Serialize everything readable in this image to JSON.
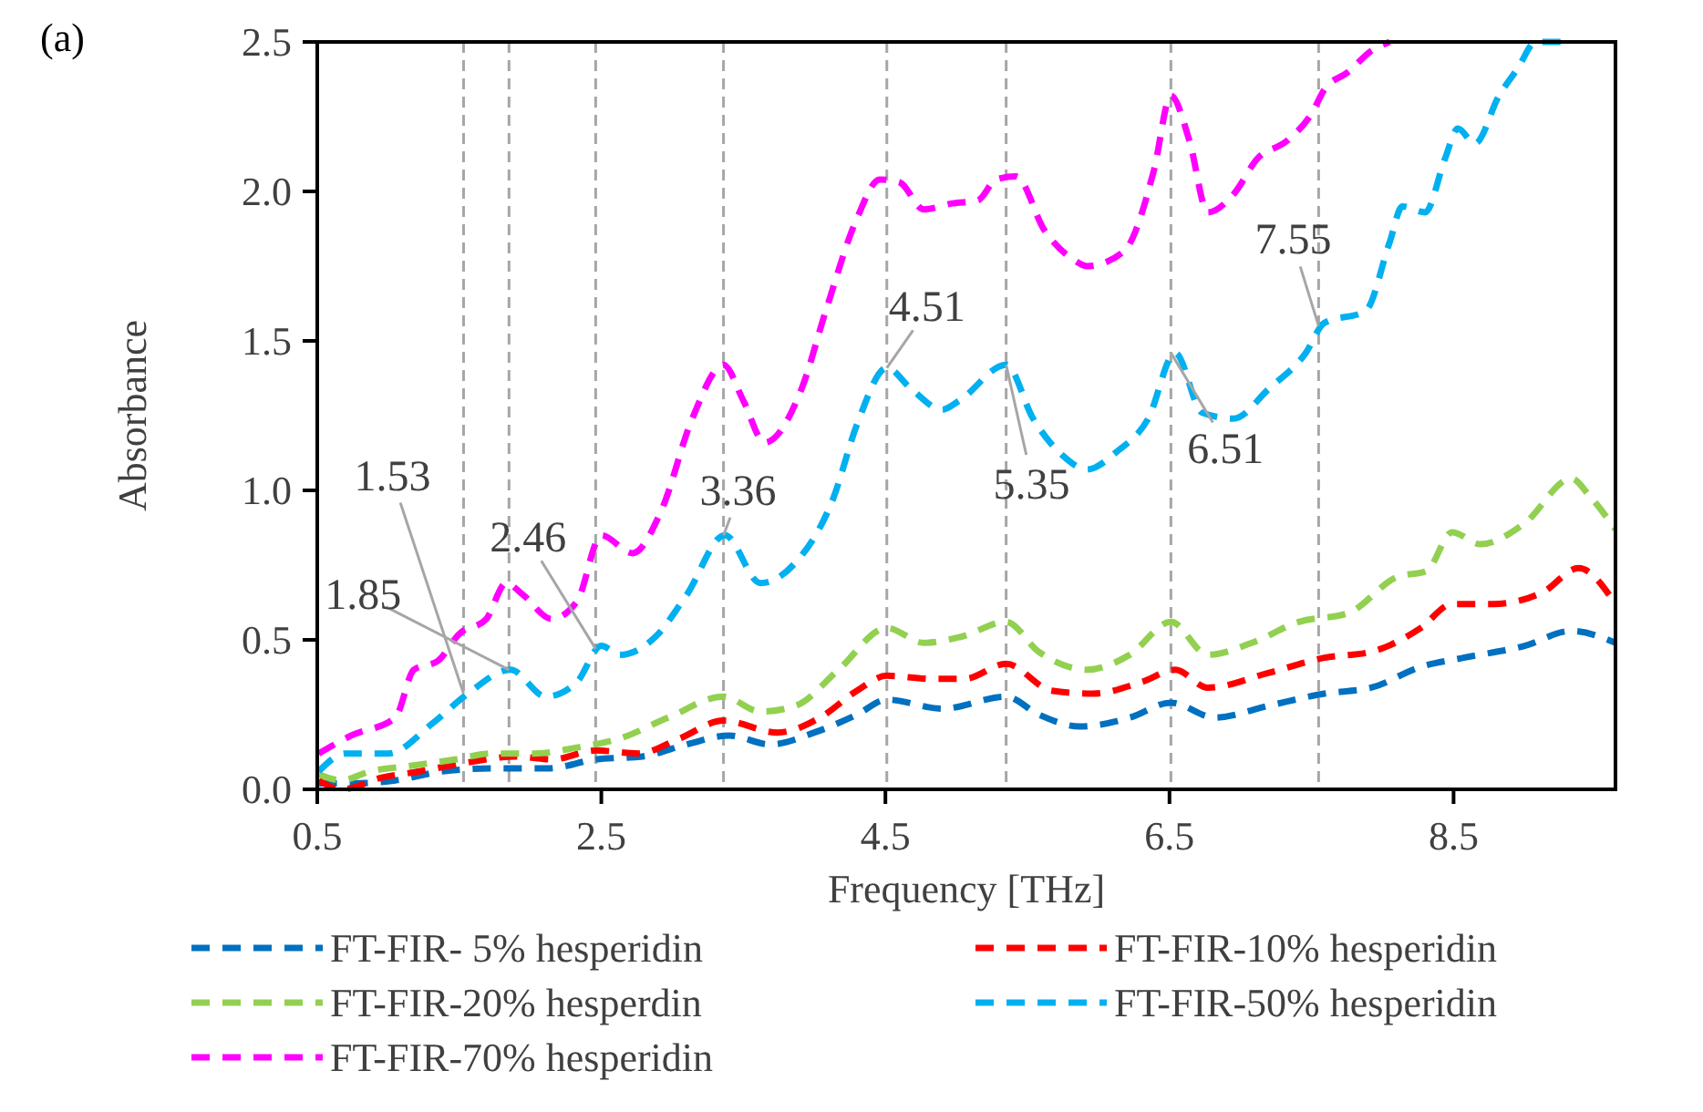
{
  "chart_data": {
    "type": "line",
    "xlabel": "Frequency [THz]",
    "ylabel": "Absorbance",
    "xlim": [
      0.5,
      9.64
    ],
    "xticks": [
      0.5,
      2.5,
      4.5,
      6.5,
      8.5
    ],
    "ylim": [
      0,
      2.5
    ],
    "yticks": [
      {
        "value": 0,
        "label": "0.0"
      },
      {
        "value": 0.5,
        "label": "0.5"
      },
      {
        "value": 1,
        "label": "1.0"
      },
      {
        "value": 1.5,
        "label": "1.5"
      },
      {
        "value": 2,
        "label": "2.0"
      },
      {
        "value": 2.5,
        "label": "2.5"
      }
    ],
    "grid": false,
    "legend": "bottom",
    "line_style": "dashed",
    "marker": "none",
    "series": [
      {
        "name": "FT-FIR- 5% hesperidin",
        "color": "#0070c0",
        "x": [
          0.51,
          0.74,
          1.05,
          1.38,
          1.73,
          2.12,
          2.46,
          2.79,
          3.1,
          3.4,
          3.69,
          4.0,
          4.3,
          4.51,
          4.9,
          5.35,
          5.58,
          5.87,
          6.22,
          6.51,
          6.82,
          7.2,
          7.59,
          7.92,
          8.27,
          8.57,
          9.0,
          9.33,
          9.64
        ],
        "values": [
          0.02,
          0.02,
          0.03,
          0.06,
          0.07,
          0.07,
          0.1,
          0.11,
          0.15,
          0.18,
          0.15,
          0.19,
          0.25,
          0.3,
          0.27,
          0.31,
          0.25,
          0.21,
          0.24,
          0.29,
          0.24,
          0.28,
          0.32,
          0.34,
          0.41,
          0.44,
          0.48,
          0.53,
          0.49
        ]
      },
      {
        "name": "FT-FIR-10% hesperidin",
        "color": "#ff0000",
        "x": [
          0.51,
          0.67,
          0.96,
          1.22,
          1.56,
          1.9,
          2.15,
          2.46,
          2.76,
          3.05,
          3.36,
          3.74,
          4.04,
          4.3,
          4.51,
          4.81,
          5.06,
          5.35,
          5.67,
          5.96,
          6.31,
          6.54,
          6.77,
          7.2,
          7.59,
          7.92,
          8.27,
          8.49,
          8.78,
          9.13,
          9.38,
          9.64
        ],
        "values": [
          0.03,
          0.0,
          0.04,
          0.06,
          0.09,
          0.11,
          0.1,
          0.13,
          0.12,
          0.17,
          0.23,
          0.19,
          0.24,
          0.33,
          0.38,
          0.37,
          0.37,
          0.42,
          0.33,
          0.32,
          0.36,
          0.4,
          0.34,
          0.39,
          0.44,
          0.46,
          0.54,
          0.62,
          0.62,
          0.66,
          0.74,
          0.62
        ]
      },
      {
        "name": "FT-FIR-20% hesperdin",
        "color": "#92d050",
        "x": [
          0.51,
          0.67,
          0.87,
          1.18,
          1.47,
          1.73,
          2.03,
          2.33,
          2.63,
          2.97,
          3.36,
          3.62,
          3.87,
          4.17,
          4.51,
          4.77,
          5.03,
          5.35,
          5.58,
          5.92,
          6.22,
          6.51,
          6.77,
          7.08,
          7.41,
          7.76,
          8.1,
          8.31,
          8.49,
          8.69,
          9.0,
          9.33,
          9.46,
          9.64
        ],
        "values": [
          0.05,
          0.03,
          0.06,
          0.08,
          0.1,
          0.12,
          0.12,
          0.14,
          0.17,
          0.24,
          0.31,
          0.26,
          0.28,
          0.4,
          0.54,
          0.49,
          0.51,
          0.56,
          0.46,
          0.4,
          0.45,
          0.56,
          0.45,
          0.49,
          0.56,
          0.59,
          0.71,
          0.73,
          0.86,
          0.82,
          0.89,
          1.04,
          0.98,
          0.87
        ]
      },
      {
        "name": "FT-FIR-50% hesperidin",
        "color": "#00b0f0",
        "x": [
          0.51,
          0.7,
          1.0,
          1.31,
          1.56,
          1.86,
          2.11,
          2.33,
          2.5,
          2.63,
          2.88,
          3.1,
          3.37,
          3.62,
          3.87,
          4.13,
          4.3,
          4.51,
          4.68,
          4.9,
          5.02,
          5.35,
          5.54,
          5.74,
          5.92,
          6.13,
          6.35,
          6.54,
          6.73,
          6.95,
          7.2,
          7.46,
          7.59,
          7.88,
          8.05,
          8.14,
          8.3,
          8.44,
          8.53,
          8.65,
          8.82,
          8.95,
          9.08,
          9.29
        ],
        "values": [
          0.06,
          0.12,
          0.12,
          0.22,
          0.32,
          0.4,
          0.31,
          0.36,
          0.48,
          0.45,
          0.51,
          0.65,
          0.85,
          0.69,
          0.76,
          0.97,
          1.22,
          1.41,
          1.34,
          1.27,
          1.3,
          1.42,
          1.24,
          1.12,
          1.07,
          1.13,
          1.24,
          1.46,
          1.26,
          1.24,
          1.34,
          1.46,
          1.56,
          1.6,
          1.83,
          1.95,
          1.93,
          2.11,
          2.21,
          2.16,
          2.32,
          2.41,
          2.5,
          2.5
        ]
      },
      {
        "name": "FT-FIR-70% hesperidin",
        "color": "#ff00ff",
        "x": [
          0.51,
          0.74,
          1.05,
          1.18,
          1.35,
          1.5,
          1.69,
          1.83,
          1.95,
          2.15,
          2.33,
          2.5,
          2.72,
          2.92,
          3.14,
          3.36,
          3.5,
          3.65,
          3.91,
          4.08,
          4.3,
          4.46,
          4.6,
          4.77,
          4.97,
          5.15,
          5.28,
          5.42,
          5.62,
          5.83,
          5.92,
          6.18,
          6.39,
          6.51,
          6.64,
          6.77,
          6.95,
          7.12,
          7.33,
          7.5,
          7.59,
          7.76,
          7.92,
          8.05
        ],
        "values": [
          0.12,
          0.18,
          0.24,
          0.4,
          0.43,
          0.52,
          0.57,
          0.69,
          0.65,
          0.57,
          0.63,
          0.85,
          0.79,
          0.93,
          1.24,
          1.42,
          1.3,
          1.16,
          1.34,
          1.6,
          1.91,
          2.04,
          2.03,
          1.94,
          1.96,
          1.97,
          2.04,
          2.05,
          1.87,
          1.77,
          1.75,
          1.8,
          2.07,
          2.32,
          2.17,
          1.93,
          1.99,
          2.11,
          2.17,
          2.26,
          2.34,
          2.4,
          2.47,
          2.5
        ]
      }
    ],
    "ref_lines": [
      {
        "axis": "x",
        "value": 1.53,
        "color": "#a6a6a6",
        "line_style": "dashed"
      },
      {
        "axis": "x",
        "value": 1.85,
        "color": "#a6a6a6",
        "line_style": "dashed"
      },
      {
        "axis": "x",
        "value": 2.46,
        "color": "#a6a6a6",
        "line_style": "dashed"
      },
      {
        "axis": "x",
        "value": 3.36,
        "color": "#a6a6a6",
        "line_style": "dashed"
      },
      {
        "axis": "x",
        "value": 4.51,
        "color": "#a6a6a6",
        "line_style": "dashed"
      },
      {
        "axis": "x",
        "value": 5.35,
        "color": "#a6a6a6",
        "line_style": "dashed"
      },
      {
        "axis": "x",
        "value": 6.51,
        "color": "#a6a6a6",
        "line_style": "dashed"
      },
      {
        "axis": "x",
        "value": 7.55,
        "color": "#a6a6a6",
        "line_style": "dashed"
      }
    ],
    "annotations": [
      "(a)",
      {
        "text": "1.53",
        "x": 1.53,
        "y": 0.32
      },
      {
        "text": "1.85",
        "x": 1.85,
        "y": 0.4
      },
      {
        "text": "2.46",
        "x": 2.46,
        "y": 0.47
      },
      {
        "text": "3.36",
        "x": 3.36,
        "y": 0.85
      },
      {
        "text": "4.51",
        "x": 4.51,
        "y": 1.41
      },
      {
        "text": "5.35",
        "x": 5.35,
        "y": 1.42
      },
      {
        "text": "6.51",
        "x": 6.51,
        "y": 1.46
      },
      {
        "text": "7.55",
        "x": 7.55,
        "y": 1.55
      }
    ]
  }
}
